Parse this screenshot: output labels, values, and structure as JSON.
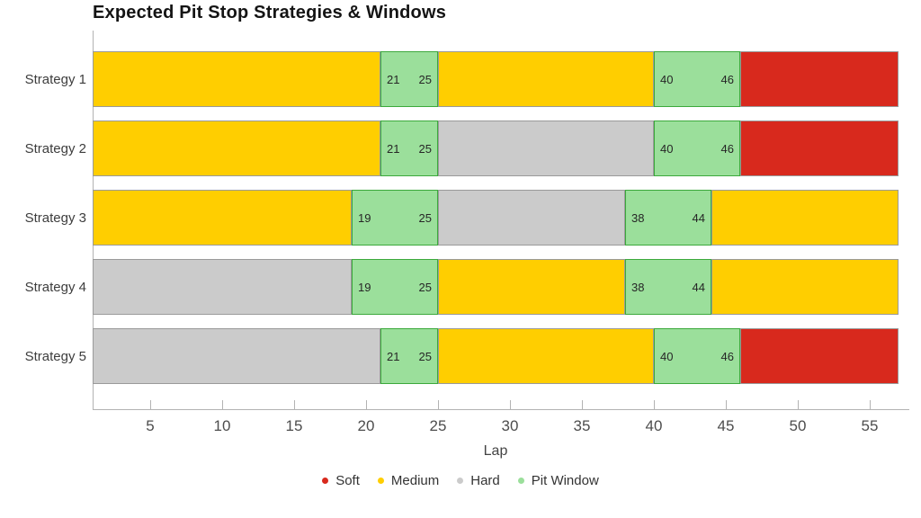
{
  "chart_data": {
    "type": "bar",
    "subtype": "horizontal-stacked-gantt",
    "title": "Expected Pit Stop Strategies & Windows",
    "xlabel": "Lap",
    "xlim": [
      1,
      57
    ],
    "x_ticks": [
      5,
      10,
      15,
      20,
      25,
      30,
      35,
      40,
      45,
      50,
      55
    ],
    "grid": false,
    "legend_position": "bottom-center",
    "colors": {
      "Soft": "#d8291d",
      "Medium": "#ffce00",
      "Hard": "#cbcbcb",
      "Pit Window": "#9bdf9b",
      "pit_border": "#3ca93c",
      "segment_border": "#9a9a9a",
      "axis": "#b3b3b3"
    },
    "legend": [
      {
        "label": "Soft",
        "color": "#d8291d"
      },
      {
        "label": "Medium",
        "color": "#ffce00"
      },
      {
        "label": "Hard",
        "color": "#cbcbcb"
      },
      {
        "label": "Pit Window",
        "color": "#9bdf9b"
      }
    ],
    "categories": [
      "Strategy 1",
      "Strategy 2",
      "Strategy 3",
      "Strategy 4",
      "Strategy 5"
    ],
    "rows": [
      {
        "label": "Strategy 1",
        "segments": [
          {
            "compound": "Medium",
            "start": 1,
            "end": 21
          },
          {
            "compound": "Pit Window",
            "start": 21,
            "end": 25,
            "start_label": "21",
            "end_label": "25"
          },
          {
            "compound": "Medium",
            "start": 25,
            "end": 40
          },
          {
            "compound": "Pit Window",
            "start": 40,
            "end": 46,
            "start_label": "40",
            "end_label": "46"
          },
          {
            "compound": "Soft",
            "start": 46,
            "end": 57
          }
        ]
      },
      {
        "label": "Strategy 2",
        "segments": [
          {
            "compound": "Medium",
            "start": 1,
            "end": 21
          },
          {
            "compound": "Pit Window",
            "start": 21,
            "end": 25,
            "start_label": "21",
            "end_label": "25"
          },
          {
            "compound": "Hard",
            "start": 25,
            "end": 40
          },
          {
            "compound": "Pit Window",
            "start": 40,
            "end": 46,
            "start_label": "40",
            "end_label": "46"
          },
          {
            "compound": "Soft",
            "start": 46,
            "end": 57
          }
        ]
      },
      {
        "label": "Strategy 3",
        "segments": [
          {
            "compound": "Medium",
            "start": 1,
            "end": 19
          },
          {
            "compound": "Pit Window",
            "start": 19,
            "end": 25,
            "start_label": "19",
            "end_label": "25"
          },
          {
            "compound": "Hard",
            "start": 25,
            "end": 38
          },
          {
            "compound": "Pit Window",
            "start": 38,
            "end": 44,
            "start_label": "38",
            "end_label": "44"
          },
          {
            "compound": "Medium",
            "start": 44,
            "end": 57
          }
        ]
      },
      {
        "label": "Strategy 4",
        "segments": [
          {
            "compound": "Hard",
            "start": 1,
            "end": 19
          },
          {
            "compound": "Pit Window",
            "start": 19,
            "end": 25,
            "start_label": "19",
            "end_label": "25"
          },
          {
            "compound": "Medium",
            "start": 25,
            "end": 38
          },
          {
            "compound": "Pit Window",
            "start": 38,
            "end": 44,
            "start_label": "38",
            "end_label": "44"
          },
          {
            "compound": "Medium",
            "start": 44,
            "end": 57
          }
        ]
      },
      {
        "label": "Strategy 5",
        "segments": [
          {
            "compound": "Hard",
            "start": 1,
            "end": 21
          },
          {
            "compound": "Pit Window",
            "start": 21,
            "end": 25,
            "start_label": "21",
            "end_label": "25"
          },
          {
            "compound": "Medium",
            "start": 25,
            "end": 40
          },
          {
            "compound": "Pit Window",
            "start": 40,
            "end": 46,
            "start_label": "40",
            "end_label": "46"
          },
          {
            "compound": "Soft",
            "start": 46,
            "end": 57
          }
        ]
      }
    ]
  }
}
